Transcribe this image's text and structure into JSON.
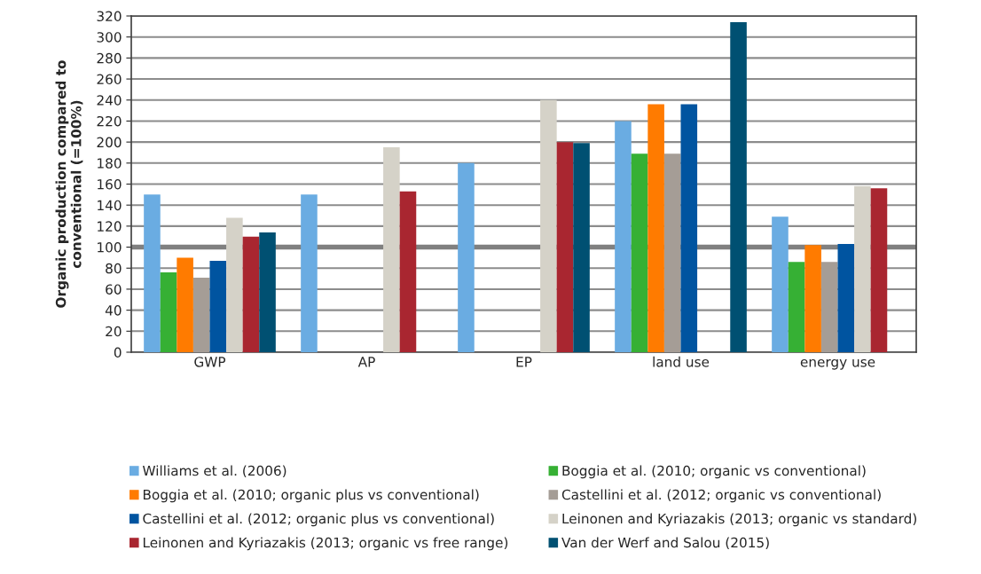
{
  "chart_data": {
    "type": "bar",
    "ylabel": "Organic production compared to\nconventional (=100%)",
    "categories": [
      "GWP",
      "AP",
      "EP",
      "land use",
      "energy use"
    ],
    "series": [
      {
        "name": "Williams et al. (2006)",
        "color": "#6aace2",
        "values": [
          150,
          150,
          180,
          220,
          129
        ]
      },
      {
        "name": "Boggia et al. (2010; organic vs conventional)",
        "color": "#36b034",
        "values": [
          76,
          null,
          null,
          189,
          86
        ]
      },
      {
        "name": "Boggia et al. (2010; organic plus vs conventional)",
        "color": "#ff7b00",
        "values": [
          90,
          null,
          null,
          236,
          102
        ]
      },
      {
        "name": "Castellini et al. (2012; organic vs conventional)",
        "color": "#a59d96",
        "values": [
          71,
          null,
          null,
          189,
          86
        ]
      },
      {
        "name": "Castellini et al. (2012; organic plus vs conventional)",
        "color": "#0054a0",
        "values": [
          87,
          null,
          null,
          236,
          103
        ]
      },
      {
        "name": "Leinonen and Kyriazakis (2013; organic vs standard)",
        "color": "#d5d2c8",
        "values": [
          128,
          195,
          240,
          null,
          158
        ]
      },
      {
        "name": "Leinonen and Kyriazakis (2013; organic vs free range)",
        "color": "#a92630",
        "values": [
          110,
          153,
          200,
          null,
          156
        ]
      },
      {
        "name": "Van der Werf and Salou (2015)",
        "color": "#005072",
        "values": [
          114,
          null,
          199,
          314,
          null
        ]
      }
    ],
    "ylim": [
      0,
      320
    ],
    "yticks": [
      0,
      20,
      40,
      60,
      80,
      100,
      120,
      140,
      160,
      180,
      200,
      220,
      240,
      260,
      280,
      300,
      320
    ],
    "ref_lines": [
      {
        "axis": "y",
        "value": 100,
        "color": "#808080"
      }
    ],
    "grid": "y",
    "legend": "bottom"
  }
}
